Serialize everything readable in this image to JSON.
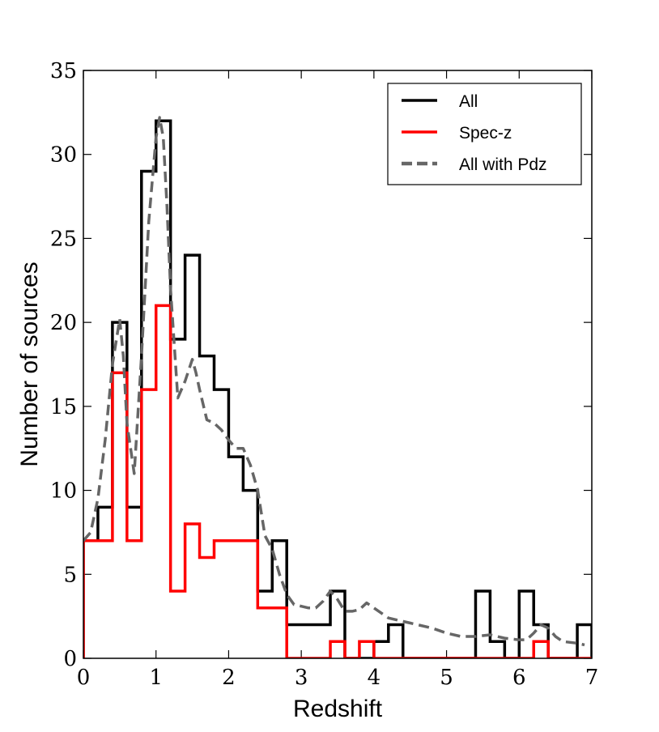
{
  "chart_data": {
    "type": "histogram",
    "xlabel": "Redshift",
    "ylabel": "Number of sources",
    "xlim": [
      0,
      7
    ],
    "ylim": [
      0,
      35
    ],
    "xticks": [
      "0",
      "1",
      "2",
      "3",
      "4",
      "5",
      "6",
      "7"
    ],
    "yticks": [
      "0",
      "5",
      "10",
      "15",
      "20",
      "25",
      "30",
      "35"
    ],
    "legend_position": "top-right",
    "bin_edges": [
      0,
      0.2,
      0.4,
      0.6,
      0.8,
      1.0,
      1.2,
      1.4,
      1.6,
      1.8,
      2.0,
      2.2,
      2.4,
      2.6,
      2.8,
      3.0,
      3.2,
      3.4,
      3.6,
      3.8,
      4.0,
      4.2,
      4.4,
      4.6,
      4.8,
      5.0,
      5.2,
      5.4,
      5.6,
      5.8,
      6.0,
      6.2,
      6.4,
      6.6,
      6.8,
      7.0
    ],
    "series": [
      {
        "name": "All",
        "style": "step",
        "color": "#000000",
        "values": [
          7,
          9,
          20,
          9,
          29,
          32,
          19,
          24,
          18,
          16,
          12,
          10,
          4,
          7,
          2,
          2,
          2,
          4,
          0,
          0,
          1,
          2,
          0,
          0,
          0,
          0,
          0,
          4,
          1,
          0,
          4,
          2,
          0,
          0,
          2
        ]
      },
      {
        "name": "Spec-z",
        "style": "step",
        "color": "#ff0000",
        "values": [
          7,
          7,
          17,
          7,
          16,
          21,
          4,
          8,
          6,
          7,
          7,
          7,
          3,
          3,
          0,
          0,
          0,
          1,
          0,
          1,
          0,
          0,
          0,
          0,
          0,
          0,
          0,
          0,
          0,
          0,
          0,
          1,
          0,
          0,
          0
        ]
      },
      {
        "name": "All with Pdz",
        "style": "dashed",
        "color": "#666666",
        "x": [
          0,
          0.1,
          0.2,
          0.3,
          0.4,
          0.5,
          0.55,
          0.6,
          0.7,
          0.8,
          0.9,
          1.0,
          1.05,
          1.1,
          1.15,
          1.2,
          1.3,
          1.4,
          1.5,
          1.55,
          1.6,
          1.7,
          1.8,
          1.9,
          2.0,
          2.1,
          2.2,
          2.3,
          2.4,
          2.5,
          2.6,
          2.7,
          2.8,
          2.9,
          3.0,
          3.1,
          3.2,
          3.3,
          3.4,
          3.5,
          3.6,
          3.7,
          3.8,
          3.9,
          4.0,
          4.2,
          4.4,
          4.6,
          4.8,
          5.0,
          5.2,
          5.4,
          5.6,
          5.8,
          6.0,
          6.1,
          6.2,
          6.3,
          6.4,
          6.5,
          6.6,
          6.8,
          6.9
        ],
        "values": [
          7,
          7.5,
          9.5,
          13,
          17.5,
          20.2,
          18,
          14,
          11,
          18,
          26,
          31,
          32.2,
          31,
          27,
          22,
          15.5,
          16.5,
          17.8,
          17,
          16,
          14.2,
          14,
          13.6,
          13,
          12.5,
          12.5,
          11.5,
          10,
          7.3,
          6.5,
          5,
          3.8,
          3.2,
          3.1,
          3.0,
          3.0,
          3.4,
          4.0,
          3.5,
          2.8,
          2.8,
          2.9,
          3.3,
          3.0,
          2.4,
          2.2,
          2.0,
          1.8,
          1.5,
          1.3,
          1.3,
          1.4,
          1.2,
          1.1,
          1.1,
          1.5,
          2.0,
          1.8,
          1.3,
          1.0,
          0.9,
          0.8
        ]
      }
    ]
  }
}
